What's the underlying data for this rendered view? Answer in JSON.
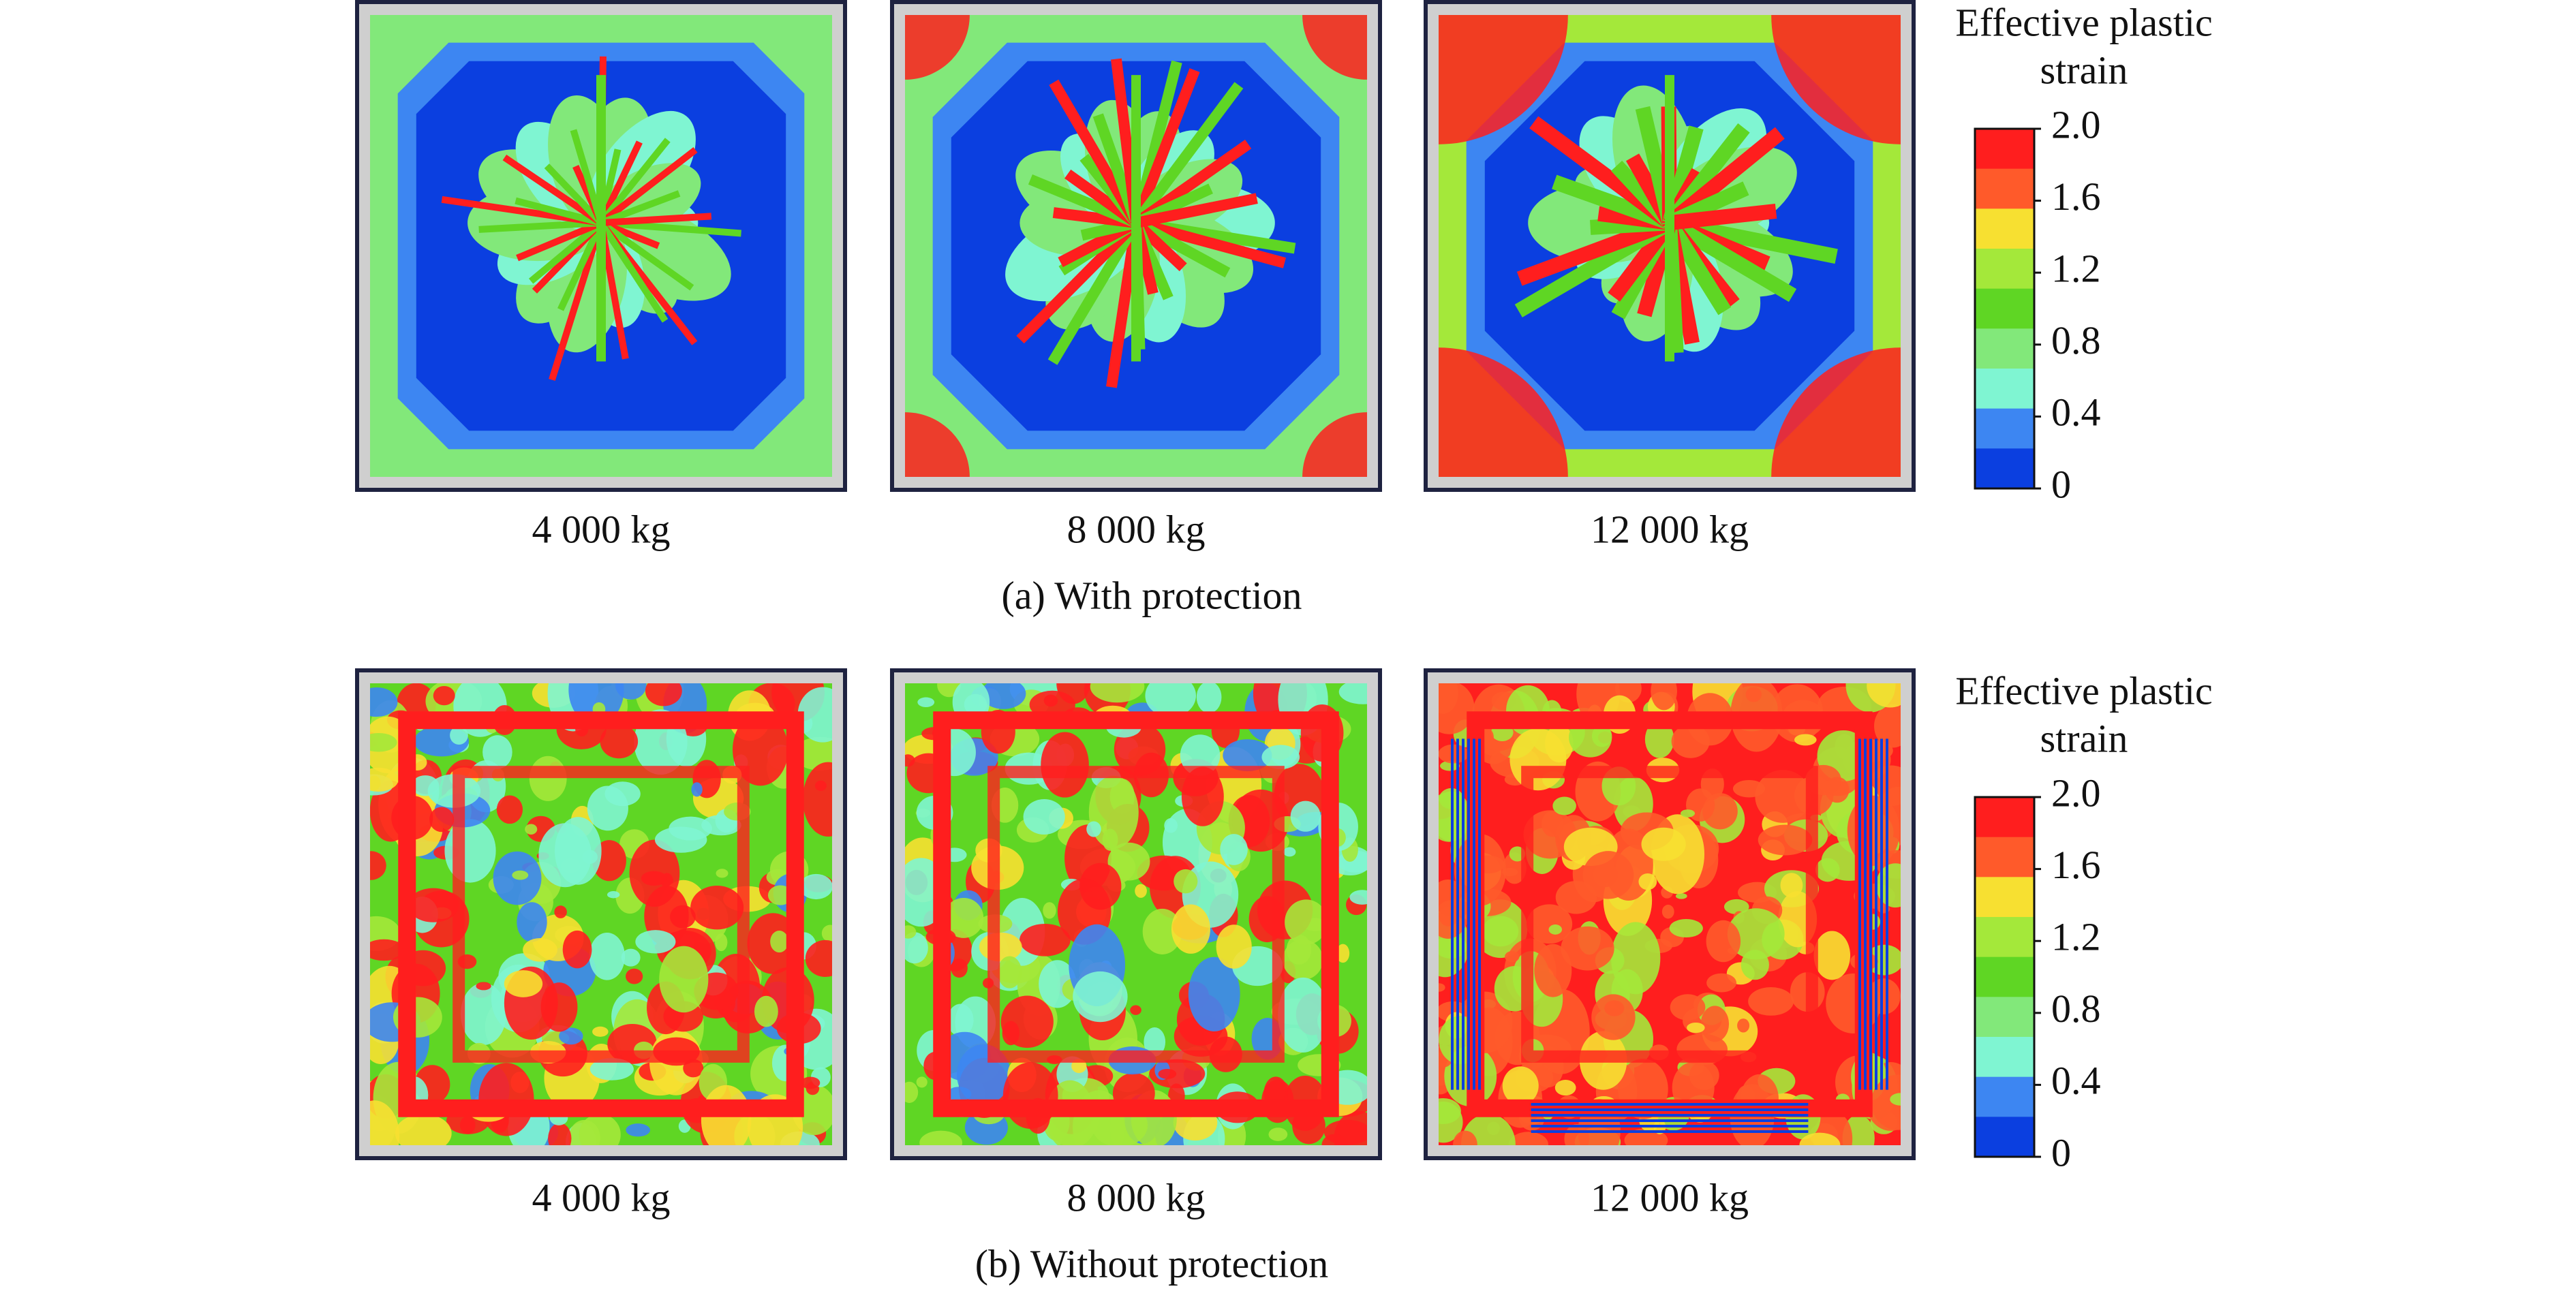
{
  "rows": [
    {
      "panels": [
        "4 000 kg",
        "8 000 kg",
        "12 000 kg"
      ],
      "caption": "(a) With protection",
      "colorbar": {
        "title": [
          "Effective plastic",
          "strain"
        ],
        "ticks": [
          "2.0",
          "1.6",
          "1.2",
          "0.8",
          "0.4",
          "0"
        ]
      }
    },
    {
      "panels": [
        "4 000 kg",
        "8 000 kg",
        "12 000 kg"
      ],
      "caption": "(b) Without protection",
      "colorbar": {
        "title": [
          "Effective plastic",
          "strain"
        ],
        "ticks": [
          "2.0",
          "1.6",
          "1.2",
          "0.8",
          "0.4",
          "0"
        ]
      }
    }
  ],
  "colorbar_colors": [
    "#ff1e1e",
    "#ff5a2a",
    "#f7e031",
    "#a4e83a",
    "#5fd624",
    "#82e87a",
    "#7ff5d2",
    "#3d86f2",
    "#0b3fe0"
  ]
}
